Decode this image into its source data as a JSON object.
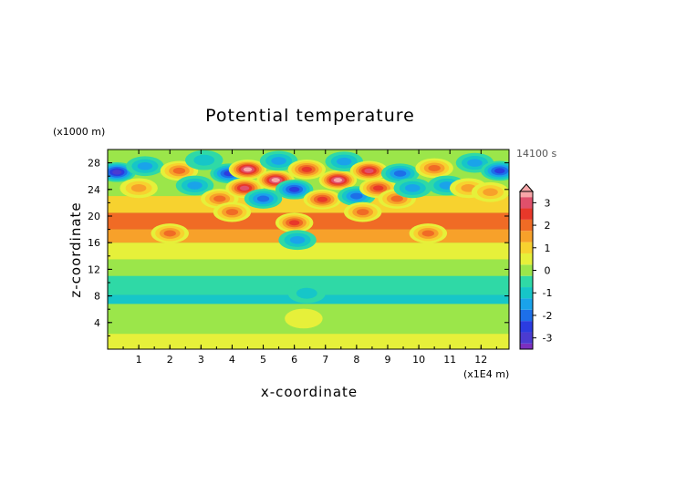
{
  "chart_data": {
    "type": "heatmap",
    "title": "Potential temperature",
    "xlabel": "x-coordinate",
    "ylabel": "z-coordinate",
    "x_unit": "(x1E4 m)",
    "y_unit": "(x1000 m)",
    "time_label": "14100 s",
    "xlim": [
      0,
      12.9
    ],
    "ylim": [
      0,
      30
    ],
    "x_ticks": [
      "1",
      "2",
      "3",
      "4",
      "5",
      "6",
      "7",
      "8",
      "9",
      "10",
      "11",
      "12"
    ],
    "y_ticks": [
      "4",
      "8",
      "12",
      "16",
      "20",
      "24",
      "28"
    ],
    "colorbar": {
      "range": [
        -3.5,
        3.5
      ],
      "ticks": [
        "3",
        "2",
        "1",
        "0",
        "-1",
        "-2",
        "-3"
      ],
      "levels": [
        {
          "value": -3.5,
          "color": "#7b2fbe"
        },
        {
          "value": -3.0,
          "color": "#4b3bd1"
        },
        {
          "value": -2.5,
          "color": "#2b3ce0"
        },
        {
          "value": -2.0,
          "color": "#1d6fe8"
        },
        {
          "value": -1.5,
          "color": "#1aa3ea"
        },
        {
          "value": -1.0,
          "color": "#16c6c8"
        },
        {
          "value": -0.5,
          "color": "#2fd9a6"
        },
        {
          "value": 0.0,
          "color": "#9be64a"
        },
        {
          "value": 0.5,
          "color": "#e6f03a"
        },
        {
          "value": 1.0,
          "color": "#f7d22f"
        },
        {
          "value": 1.5,
          "color": "#f7a12a"
        },
        {
          "value": 2.0,
          "color": "#f06b25"
        },
        {
          "value": 2.5,
          "color": "#e8382a"
        },
        {
          "value": 3.0,
          "color": "#e0506b"
        },
        {
          "value": 3.5,
          "color": "#f7a6a8"
        }
      ]
    },
    "field": {
      "background_value": 0.1,
      "layers": [
        {
          "z_range": [
            0,
            2.3
          ],
          "value": 0.3
        },
        {
          "z_range": [
            6.8,
            8.2
          ],
          "value": -0.9
        },
        {
          "z_range": [
            8.2,
            11
          ],
          "value": -0.4
        },
        {
          "z_range": [
            13.5,
            16
          ],
          "value": 0.6
        },
        {
          "z_range": [
            16,
            18
          ],
          "value": 1.3
        },
        {
          "z_range": [
            18,
            20.5
          ],
          "value": 1.8
        },
        {
          "z_range": [
            20.5,
            23
          ],
          "value": 1.2
        }
      ],
      "cells": [
        {
          "x": 0.3,
          "z": 26.6,
          "value": -2.8
        },
        {
          "x": 1.2,
          "z": 27.5,
          "value": -1.3
        },
        {
          "x": 1.0,
          "z": 24.2,
          "value": 1.4
        },
        {
          "x": 2.3,
          "z": 26.8,
          "value": 2.0
        },
        {
          "x": 2.8,
          "z": 24.6,
          "value": -1.6
        },
        {
          "x": 3.1,
          "z": 28.4,
          "value": -1.2
        },
        {
          "x": 3.6,
          "z": 22.6,
          "value": 2.2
        },
        {
          "x": 3.9,
          "z": 26.4,
          "value": -2.3
        },
        {
          "x": 4.4,
          "z": 24.2,
          "value": 2.8
        },
        {
          "x": 4.5,
          "z": 27.0,
          "value": 3.3
        },
        {
          "x": 5.0,
          "z": 22.6,
          "value": -2.0
        },
        {
          "x": 5.4,
          "z": 25.4,
          "value": 3.4
        },
        {
          "x": 5.5,
          "z": 28.3,
          "value": -1.5
        },
        {
          "x": 6.0,
          "z": 24.0,
          "value": -2.6
        },
        {
          "x": 6.0,
          "z": 19.0,
          "value": 2.5
        },
        {
          "x": 6.1,
          "z": 16.4,
          "value": -1.6
        },
        {
          "x": 6.4,
          "z": 27.0,
          "value": 2.6
        },
        {
          "x": 6.9,
          "z": 22.5,
          "value": 2.4
        },
        {
          "x": 7.4,
          "z": 25.4,
          "value": 3.4
        },
        {
          "x": 7.6,
          "z": 28.2,
          "value": -1.5
        },
        {
          "x": 8.0,
          "z": 23.0,
          "value": -2.2
        },
        {
          "x": 8.4,
          "z": 26.8,
          "value": 3.2
        },
        {
          "x": 8.7,
          "z": 24.2,
          "value": 2.6
        },
        {
          "x": 9.3,
          "z": 22.6,
          "value": 2.0
        },
        {
          "x": 9.4,
          "z": 26.4,
          "value": -2.0
        },
        {
          "x": 9.8,
          "z": 24.2,
          "value": -1.5
        },
        {
          "x": 10.5,
          "z": 27.2,
          "value": 2.2
        },
        {
          "x": 10.9,
          "z": 24.6,
          "value": -1.6
        },
        {
          "x": 11.6,
          "z": 24.2,
          "value": 1.4
        },
        {
          "x": 11.8,
          "z": 28.0,
          "value": -1.6
        },
        {
          "x": 12.6,
          "z": 26.8,
          "value": -2.6
        },
        {
          "x": 12.3,
          "z": 23.6,
          "value": 1.3
        },
        {
          "x": 2.0,
          "z": 17.4,
          "value": 1.8
        },
        {
          "x": 10.3,
          "z": 17.4,
          "value": 1.8
        },
        {
          "x": 4.0,
          "z": 20.6,
          "value": 2.0
        },
        {
          "x": 8.2,
          "z": 20.6,
          "value": 2.0
        },
        {
          "x": 6.4,
          "z": 8.4,
          "value": -0.9
        },
        {
          "x": 6.3,
          "z": 4.6,
          "value": 0.6
        }
      ]
    }
  }
}
